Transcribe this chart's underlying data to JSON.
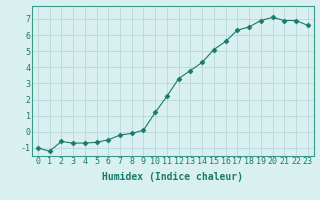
{
  "x": [
    0,
    1,
    2,
    3,
    4,
    5,
    6,
    7,
    8,
    9,
    10,
    11,
    12,
    13,
    14,
    15,
    16,
    17,
    18,
    19,
    20,
    21,
    22,
    23
  ],
  "y": [
    -1.0,
    -1.2,
    -0.6,
    -0.7,
    -0.7,
    -0.65,
    -0.5,
    -0.2,
    -0.1,
    0.1,
    1.2,
    2.2,
    3.3,
    3.8,
    4.3,
    5.1,
    5.6,
    6.3,
    6.5,
    6.9,
    7.1,
    6.9,
    6.9,
    6.6
  ],
  "line_color": "#1a7a6a",
  "marker": "D",
  "marker_size": 2.5,
  "bg_color": "#d8f0f0",
  "grid_color": "#b8d8d8",
  "xlabel": "Humidex (Indice chaleur)",
  "xlim": [
    -0.5,
    23.5
  ],
  "ylim": [
    -1.5,
    7.8
  ],
  "yticks": [
    -1,
    0,
    1,
    2,
    3,
    4,
    5,
    6,
    7
  ],
  "xticks": [
    0,
    1,
    2,
    3,
    4,
    5,
    6,
    7,
    8,
    9,
    10,
    11,
    12,
    13,
    14,
    15,
    16,
    17,
    18,
    19,
    20,
    21,
    22,
    23
  ],
  "tick_color": "#1a7a6a",
  "label_fontsize": 7,
  "tick_fontsize": 6,
  "spine_color": "#3a9a8a"
}
